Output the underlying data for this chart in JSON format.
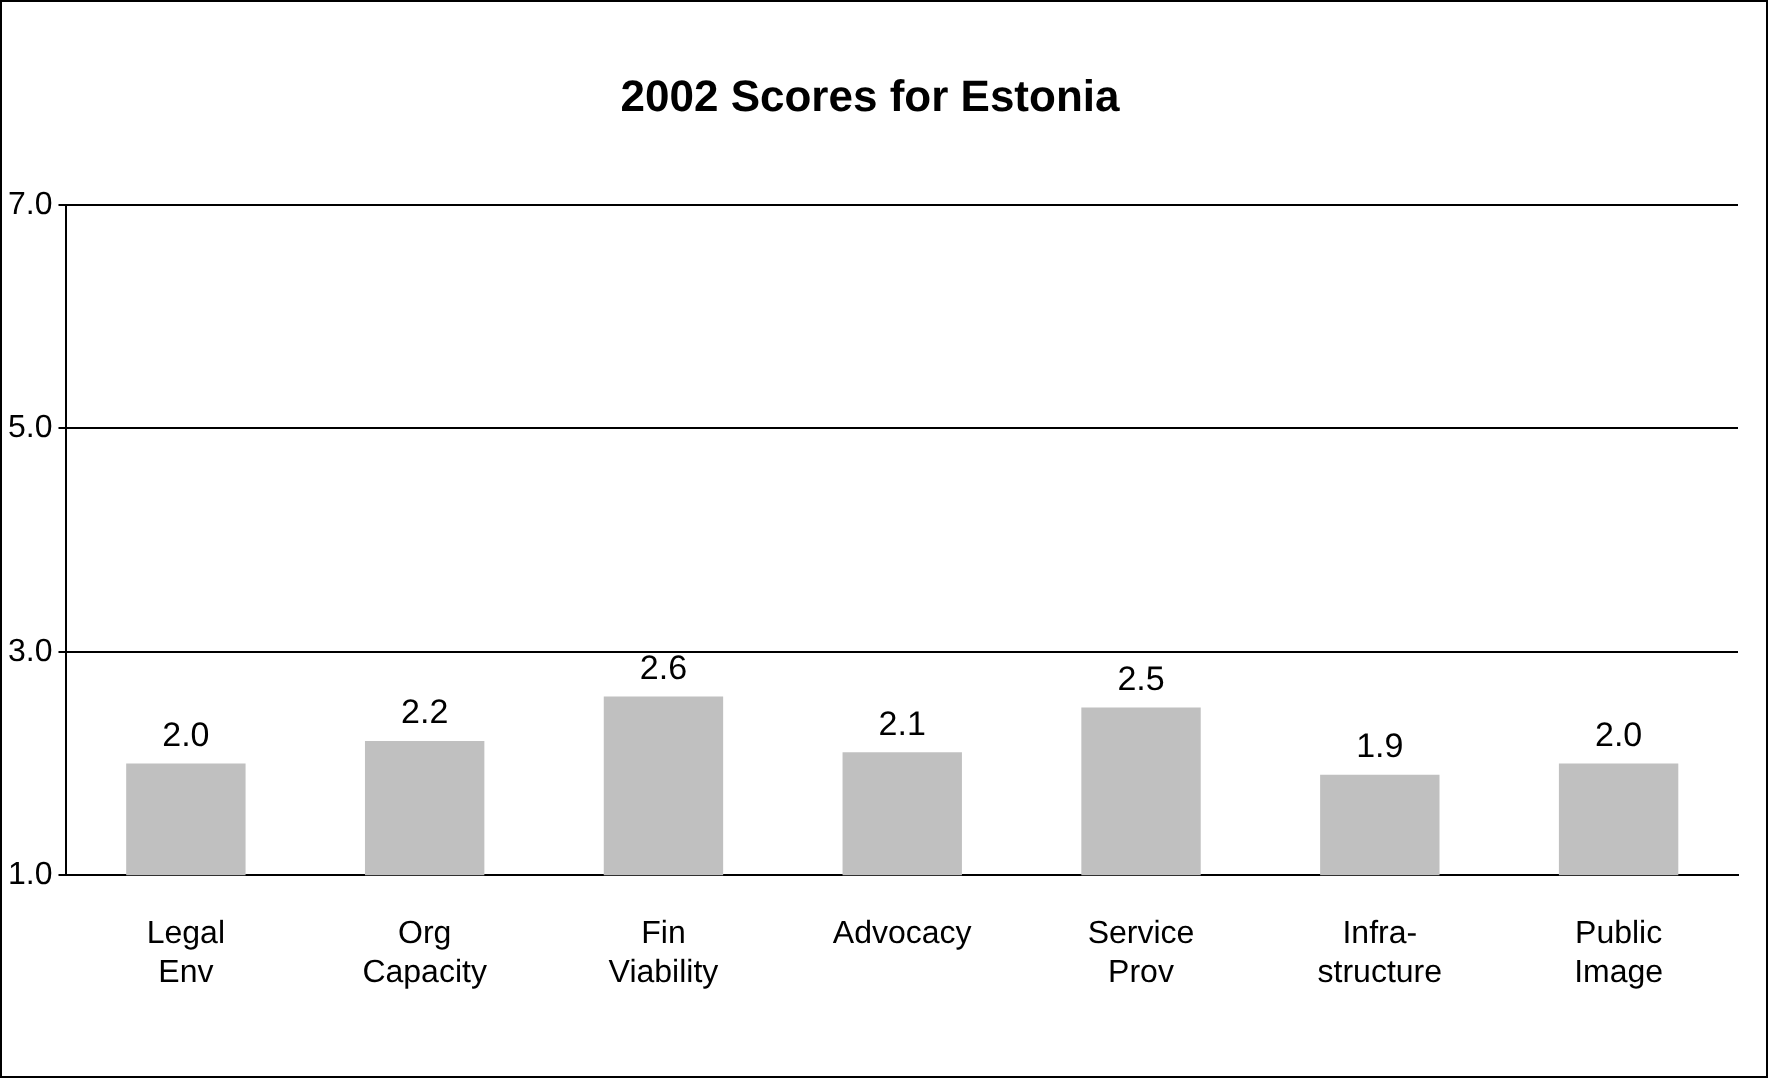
{
  "chart_data": {
    "type": "bar",
    "title": "2002 Scores for Estonia",
    "categories": [
      "Legal Env",
      "Org Capacity",
      "Fin Viability",
      "Advocacy",
      "Service Prov",
      "Infra-structure",
      "Public Image"
    ],
    "values": [
      2.0,
      2.2,
      2.6,
      2.1,
      2.5,
      1.9,
      2.0
    ],
    "value_labels": [
      "2.0",
      "2.2",
      "2.6",
      "2.1",
      "2.5",
      "1.9",
      "2.0"
    ],
    "color": "#c0c0c0",
    "ylim": [
      1,
      7
    ],
    "yticks": [
      {
        "value": 1,
        "label": "1.0"
      },
      {
        "value": 3,
        "label": "3.0"
      },
      {
        "value": 5,
        "label": "5.0"
      },
      {
        "value": 7,
        "label": "7.0"
      }
    ],
    "grid": "y",
    "legend": false
  }
}
